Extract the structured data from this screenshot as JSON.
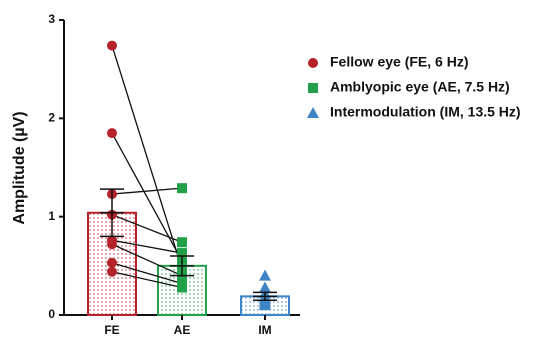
{
  "chart_data": {
    "type": "bar",
    "ylabel": "Amplitude (µV)",
    "categories": [
      "FE",
      "AE",
      "IM"
    ],
    "values": [
      1.04,
      0.5,
      0.19
    ],
    "errors": [
      0.24,
      0.1,
      0.04
    ],
    "ylim": [
      0,
      3
    ],
    "yticks": [
      0,
      1,
      2,
      3
    ],
    "series": [
      {
        "name": "Fellow eye (FE, 6 Hz)",
        "color": "#b5222b",
        "marker": "circle",
        "points": [
          2.74,
          1.85,
          1.23,
          1.02,
          0.76,
          0.72,
          0.53,
          0.44
        ]
      },
      {
        "name": "Amblyopic eye (AE, 7.5 Hz)",
        "color": "#22a14a",
        "marker": "square",
        "points": [
          0.47,
          0.55,
          1.29,
          0.74,
          0.63,
          0.4,
          0.32,
          0.28
        ]
      },
      {
        "name": "Intermodulation (IM, 13.5 Hz)",
        "color": "#3d85c6",
        "marker": "triangle",
        "points": [
          0.4,
          0.28,
          0.22,
          0.18,
          0.16,
          0.14,
          0.12,
          0.1
        ]
      }
    ],
    "paired": [
      0,
      1
    ]
  }
}
